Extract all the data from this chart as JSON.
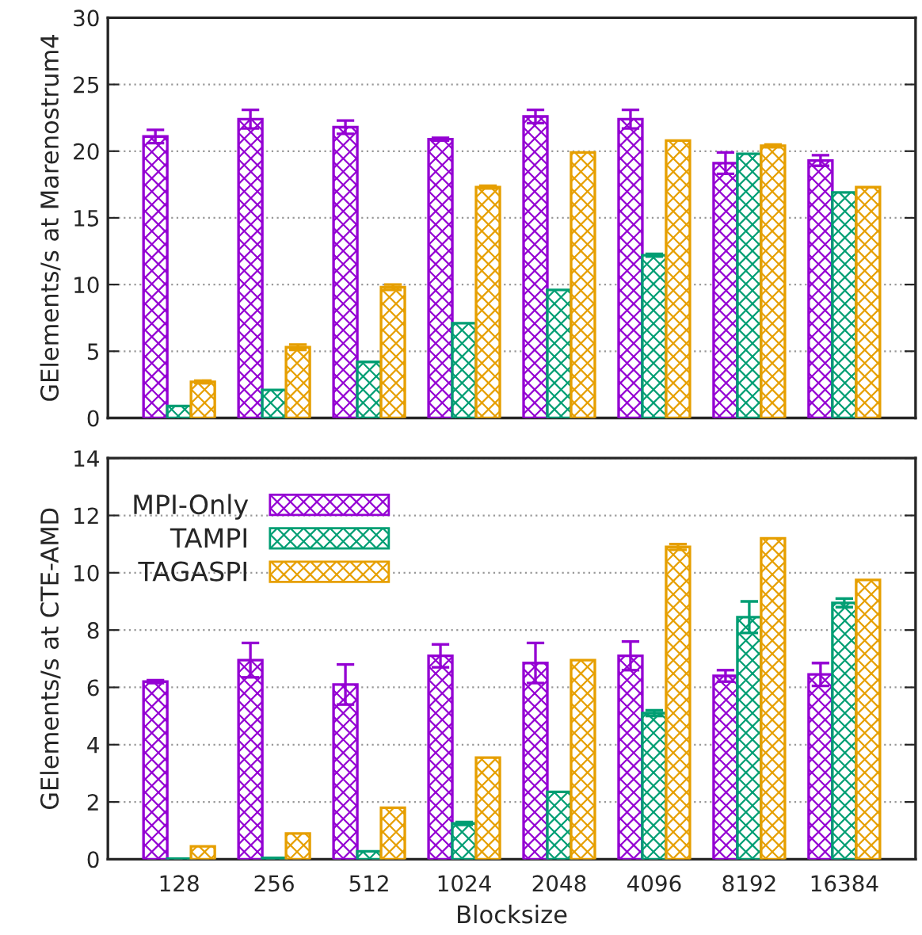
{
  "chart_data": [
    {
      "type": "bar",
      "ylabel": "GElements/s at Marenostrum4",
      "categories": [
        "128",
        "256",
        "512",
        "1024",
        "2048",
        "4096",
        "8192",
        "16384"
      ],
      "ylim": [
        0,
        30
      ],
      "yticks": [
        0,
        5,
        10,
        15,
        20,
        25,
        30
      ],
      "grid": "y",
      "tick_labels": "y",
      "series": [
        {
          "color": "#9400d3",
          "values": [
            21.1,
            22.4,
            21.8,
            20.9,
            22.6,
            22.4,
            19.1,
            19.3
          ],
          "errors": [
            0.5,
            0.7,
            0.5,
            0.1,
            0.5,
            0.7,
            0.8,
            0.4
          ]
        },
        {
          "color": "#009e73",
          "values": [
            0.9,
            2.1,
            4.2,
            7.1,
            9.6,
            12.2,
            19.8,
            16.9
          ],
          "errors": [
            null,
            null,
            null,
            null,
            null,
            0.1,
            null,
            null
          ]
        },
        {
          "color": "#e69f00",
          "values": [
            2.7,
            5.3,
            9.8,
            17.3,
            19.9,
            20.8,
            20.4,
            17.3
          ],
          "errors": [
            0.1,
            0.2,
            0.2,
            0.1,
            null,
            null,
            0.1,
            null
          ]
        }
      ]
    },
    {
      "type": "bar",
      "xlabel": "Blocksize",
      "ylabel": "GElements/s at CTE-AMD",
      "categories": [
        "128",
        "256",
        "512",
        "1024",
        "2048",
        "4096",
        "8192",
        "16384"
      ],
      "ylim": [
        0,
        14
      ],
      "yticks": [
        0,
        2,
        4,
        6,
        8,
        10,
        12,
        14
      ],
      "grid": "y",
      "legend": "top left",
      "series": [
        {
          "name": "MPI-Only",
          "color": "#9400d3",
          "values": [
            6.2,
            6.95,
            6.1,
            7.1,
            6.85,
            7.1,
            6.4,
            6.45
          ],
          "errors": [
            0.05,
            0.6,
            0.7,
            0.4,
            0.7,
            0.5,
            0.2,
            0.4
          ]
        },
        {
          "name": "TAMPI",
          "color": "#009e73",
          "values": [
            0.02,
            0.05,
            0.28,
            1.25,
            2.35,
            5.1,
            8.45,
            8.95
          ],
          "errors": [
            null,
            null,
            null,
            0.05,
            null,
            0.1,
            0.55,
            0.15
          ]
        },
        {
          "name": "TAGASPI",
          "color": "#e69f00",
          "values": [
            0.45,
            0.9,
            1.8,
            3.55,
            6.95,
            10.9,
            11.2,
            9.75
          ],
          "errors": [
            null,
            null,
            null,
            null,
            null,
            0.1,
            null,
            null
          ]
        }
      ]
    }
  ]
}
